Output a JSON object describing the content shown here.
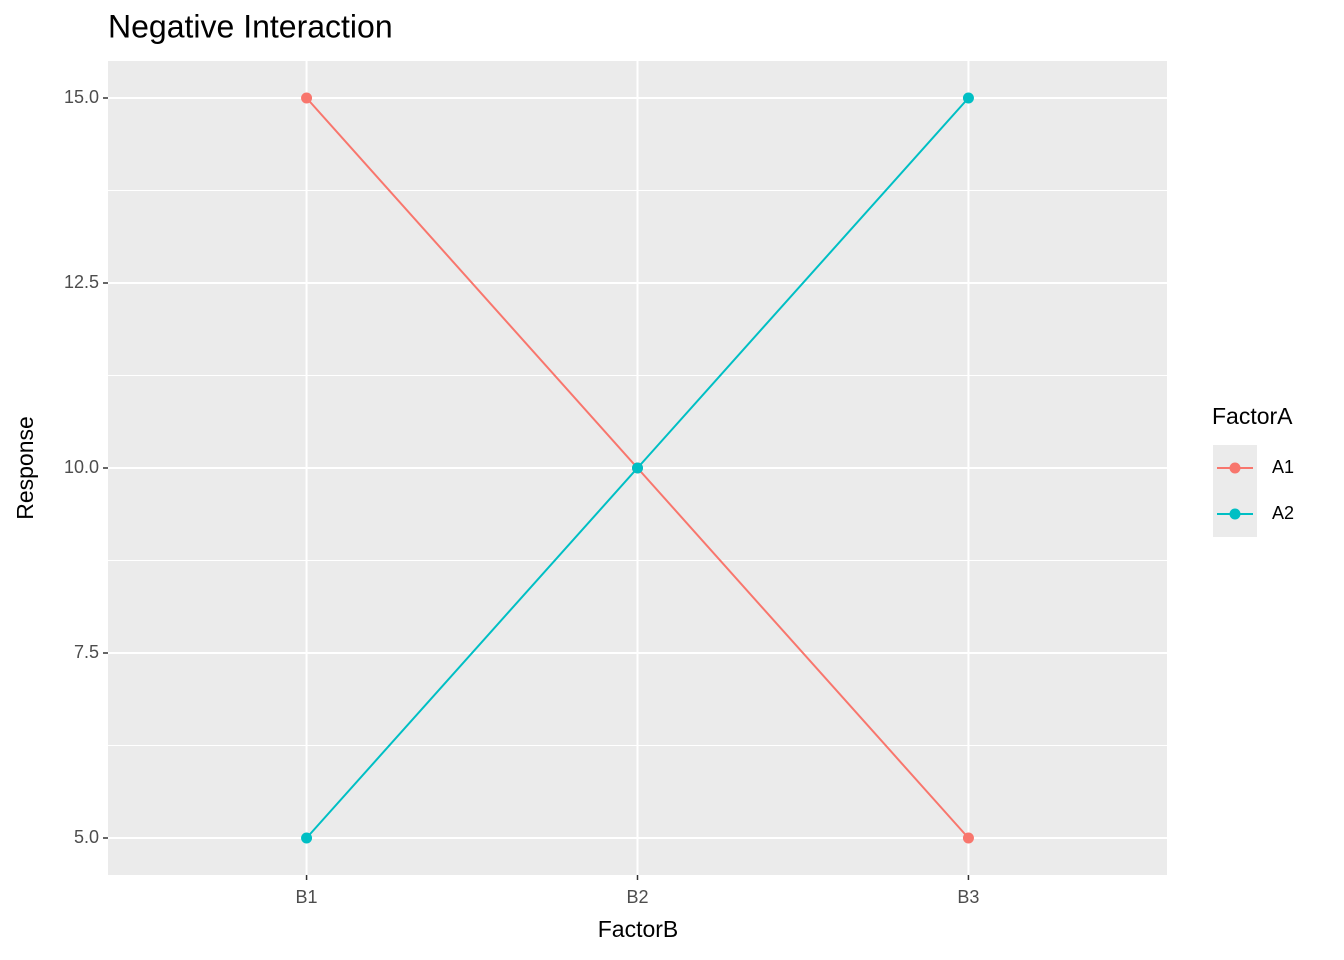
{
  "chart_data": {
    "type": "line",
    "title": "Negative Interaction",
    "x_label": "FactorB",
    "y_label": "Response",
    "categories": [
      "B1",
      "B2",
      "B3"
    ],
    "series": [
      {
        "name": "A1",
        "color": "#F8766D",
        "values": [
          15,
          10,
          5
        ]
      },
      {
        "name": "A2",
        "color": "#00BFC4",
        "values": [
          5,
          10,
          15
        ]
      }
    ],
    "legend_title": "FactorA",
    "ylim": [
      4.5,
      15.5
    ],
    "yticks": [
      {
        "value": 5,
        "label": "5.0"
      },
      7.5,
      {
        "value": 10,
        "label": "10.0"
      },
      12.5,
      {
        "value": 15,
        "label": "15.0"
      }
    ],
    "grid": true,
    "minor_grid": true,
    "legend": "right"
  }
}
